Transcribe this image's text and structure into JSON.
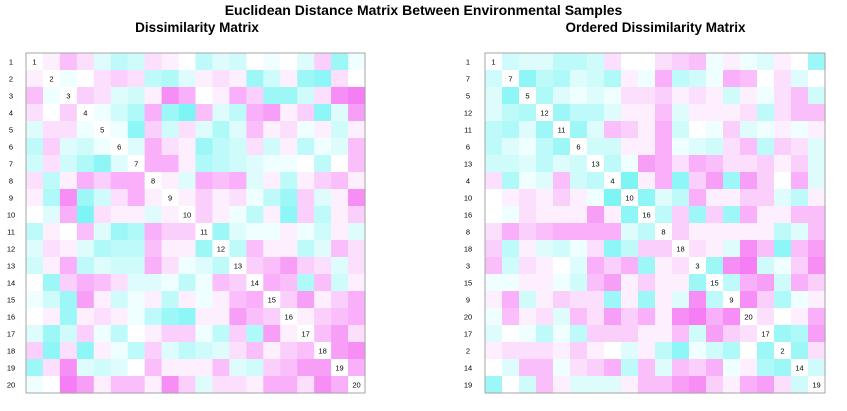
{
  "title": "Euclidean Distance Matrix Between Environmental Samples",
  "colors": {
    "low": "#5ef2f2",
    "mid": "#ffffff",
    "high": "#f25ef2",
    "border": "#a6a6a6",
    "text": "#000000"
  },
  "chart_data": [
    {
      "type": "heatmap",
      "title": "Dissimilarity Matrix",
      "order": [
        1,
        2,
        3,
        4,
        5,
        6,
        7,
        8,
        9,
        10,
        11,
        12,
        13,
        14,
        15,
        16,
        17,
        18,
        19,
        20
      ],
      "row_labels": [
        "1",
        "2",
        "3",
        "4",
        "5",
        "6",
        "7",
        "8",
        "9",
        "10",
        "11",
        "12",
        "13",
        "14",
        "15",
        "16",
        "17",
        "18",
        "19",
        "20"
      ],
      "diagonal_labels": [
        "1",
        "2",
        "3",
        "4",
        "5",
        "6",
        "7",
        "8",
        "9",
        "10",
        "11",
        "12",
        "13",
        "14",
        "15",
        "16",
        "17",
        "18",
        "19",
        "20"
      ]
    },
    {
      "type": "heatmap",
      "title": "Ordered Dissimilarity Matrix",
      "order": [
        1,
        7,
        5,
        12,
        11,
        6,
        13,
        4,
        10,
        16,
        8,
        18,
        3,
        15,
        9,
        20,
        17,
        2,
        14,
        19
      ],
      "row_labels": [
        "1",
        "7",
        "5",
        "12",
        "11",
        "6",
        "13",
        "4",
        "10",
        "16",
        "8",
        "18",
        "3",
        "15",
        "9",
        "20",
        "17",
        "2",
        "14",
        "19"
      ],
      "diagonal_labels": [
        "1",
        "7",
        "5",
        "12",
        "11",
        "6",
        "13",
        "4",
        "10",
        "16",
        "8",
        "18",
        "3",
        "15",
        "9",
        "20",
        "17",
        "2",
        "14",
        "19"
      ]
    }
  ],
  "dissimilarity_scale": "0 = cyan (similar), 1 = magenta (dissimilar)",
  "dissimilarity_values": [
    [
      0.0,
      0.55,
      0.7,
      0.6,
      0.4,
      0.3,
      0.35,
      0.6,
      0.55,
      0.5,
      0.3,
      0.4,
      0.35,
      0.5,
      0.45,
      0.5,
      0.4,
      0.65,
      0.2,
      0.45
    ],
    [
      0.55,
      0.0,
      0.45,
      0.5,
      0.6,
      0.65,
      0.6,
      0.3,
      0.25,
      0.4,
      0.55,
      0.6,
      0.55,
      0.2,
      0.35,
      0.55,
      0.2,
      0.15,
      0.6,
      0.5
    ],
    [
      0.7,
      0.45,
      0.0,
      0.65,
      0.6,
      0.4,
      0.35,
      0.55,
      0.85,
      0.75,
      0.5,
      0.55,
      0.75,
      0.65,
      0.2,
      0.2,
      0.35,
      0.6,
      0.85,
      0.9
    ],
    [
      0.6,
      0.5,
      0.65,
      0.0,
      0.45,
      0.35,
      0.25,
      0.75,
      0.2,
      0.1,
      0.7,
      0.4,
      0.3,
      0.75,
      0.8,
      0.55,
      0.65,
      0.15,
      0.4,
      0.8
    ],
    [
      0.4,
      0.6,
      0.6,
      0.45,
      0.0,
      0.45,
      0.15,
      0.65,
      0.35,
      0.6,
      0.4,
      0.25,
      0.4,
      0.7,
      0.55,
      0.6,
      0.45,
      0.55,
      0.35,
      0.55
    ],
    [
      0.3,
      0.65,
      0.4,
      0.35,
      0.45,
      0.0,
      0.4,
      0.75,
      0.6,
      0.55,
      0.2,
      0.3,
      0.35,
      0.6,
      0.35,
      0.55,
      0.3,
      0.45,
      0.4,
      0.7
    ],
    [
      0.35,
      0.6,
      0.35,
      0.25,
      0.15,
      0.4,
      0.0,
      0.75,
      0.75,
      0.55,
      0.25,
      0.3,
      0.35,
      0.4,
      0.45,
      0.45,
      0.5,
      0.3,
      0.5,
      0.7
    ],
    [
      0.6,
      0.3,
      0.55,
      0.75,
      0.65,
      0.75,
      0.75,
      0.0,
      0.55,
      0.4,
      0.75,
      0.7,
      0.75,
      0.4,
      0.55,
      0.3,
      0.55,
      0.65,
      0.7,
      0.55
    ],
    [
      0.55,
      0.25,
      0.85,
      0.2,
      0.35,
      0.6,
      0.75,
      0.55,
      0.0,
      0.55,
      0.65,
      0.55,
      0.6,
      0.45,
      0.3,
      0.2,
      0.65,
      0.4,
      0.55,
      0.85
    ],
    [
      0.5,
      0.4,
      0.75,
      0.1,
      0.6,
      0.55,
      0.55,
      0.4,
      0.55,
      0.0,
      0.65,
      0.55,
      0.45,
      0.3,
      0.55,
      0.15,
      0.65,
      0.3,
      0.55,
      0.65
    ],
    [
      0.3,
      0.55,
      0.5,
      0.7,
      0.4,
      0.2,
      0.25,
      0.75,
      0.65,
      0.65,
      0.0,
      0.2,
      0.4,
      0.45,
      0.45,
      0.55,
      0.45,
      0.35,
      0.55,
      0.4
    ],
    [
      0.4,
      0.6,
      0.55,
      0.4,
      0.25,
      0.3,
      0.3,
      0.7,
      0.55,
      0.55,
      0.2,
      0.0,
      0.3,
      0.7,
      0.55,
      0.55,
      0.3,
      0.4,
      0.7,
      0.6
    ],
    [
      0.35,
      0.55,
      0.75,
      0.3,
      0.4,
      0.35,
      0.35,
      0.75,
      0.6,
      0.45,
      0.4,
      0.3,
      0.0,
      0.65,
      0.7,
      0.8,
      0.65,
      0.6,
      0.4,
      0.6
    ],
    [
      0.5,
      0.2,
      0.65,
      0.75,
      0.7,
      0.6,
      0.4,
      0.4,
      0.45,
      0.3,
      0.45,
      0.7,
      0.65,
      0.0,
      0.75,
      0.7,
      0.25,
      0.7,
      0.35,
      0.55
    ],
    [
      0.45,
      0.35,
      0.2,
      0.8,
      0.55,
      0.35,
      0.45,
      0.55,
      0.3,
      0.55,
      0.45,
      0.55,
      0.7,
      0.75,
      0.0,
      0.65,
      0.8,
      0.55,
      0.65,
      0.75
    ],
    [
      0.5,
      0.55,
      0.2,
      0.55,
      0.6,
      0.55,
      0.45,
      0.3,
      0.2,
      0.15,
      0.55,
      0.55,
      0.8,
      0.7,
      0.65,
      0.0,
      0.55,
      0.65,
      0.7,
      0.75
    ],
    [
      0.4,
      0.2,
      0.35,
      0.65,
      0.45,
      0.3,
      0.5,
      0.55,
      0.65,
      0.65,
      0.45,
      0.3,
      0.65,
      0.25,
      0.8,
      0.55,
      0.0,
      0.7,
      0.8,
      0.6
    ],
    [
      0.65,
      0.15,
      0.6,
      0.15,
      0.55,
      0.45,
      0.3,
      0.65,
      0.4,
      0.3,
      0.35,
      0.4,
      0.6,
      0.7,
      0.55,
      0.65,
      0.7,
      0.0,
      0.8,
      0.85
    ],
    [
      0.2,
      0.6,
      0.85,
      0.4,
      0.35,
      0.4,
      0.5,
      0.7,
      0.55,
      0.55,
      0.55,
      0.7,
      0.4,
      0.35,
      0.65,
      0.7,
      0.8,
      0.8,
      0.0,
      0.75
    ],
    [
      0.45,
      0.5,
      0.9,
      0.8,
      0.55,
      0.7,
      0.7,
      0.55,
      0.85,
      0.65,
      0.4,
      0.6,
      0.6,
      0.55,
      0.75,
      0.75,
      0.6,
      0.85,
      0.75,
      0.0
    ]
  ]
}
